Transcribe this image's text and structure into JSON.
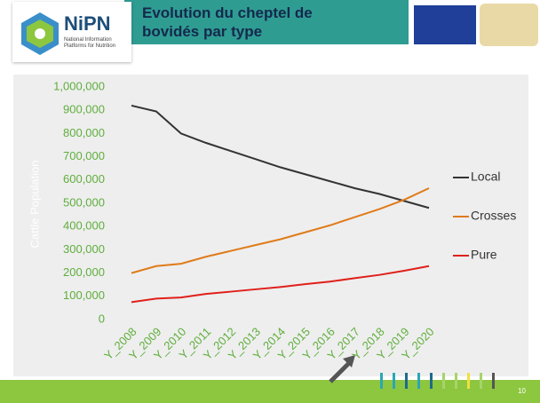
{
  "header": {
    "logo": "NiPN",
    "logo_subtitle": "National Information Platforms for Nutrition",
    "page_number": "10"
  },
  "chart_data": {
    "type": "line",
    "title": "Evolution du cheptel de bovidés par type",
    "y_label": "Cattle Population",
    "categories": [
      "Y_2008",
      "Y_2009",
      "Y_2010",
      "Y_2011",
      "Y_2012",
      "Y_2013",
      "Y_2014",
      "Y_2015",
      "Y_2016",
      "Y_2017",
      "Y_2018",
      "Y_2019",
      "Y_2020"
    ],
    "series": [
      {
        "name": "Local",
        "color": "#333333",
        "values": [
          920000,
          895000,
          800000,
          760000,
          725000,
          690000,
          655000,
          625000,
          595000,
          565000,
          540000,
          510000,
          480000
        ]
      },
      {
        "name": "Crosses",
        "color": "#e07b1a",
        "values": [
          200000,
          230000,
          240000,
          270000,
          295000,
          320000,
          345000,
          375000,
          405000,
          440000,
          475000,
          515000,
          565000
        ]
      },
      {
        "name": "Pure",
        "color": "#e0201b",
        "values": [
          75000,
          90000,
          95000,
          110000,
          120000,
          130000,
          140000,
          152000,
          163000,
          178000,
          192000,
          210000,
          230000
        ]
      }
    ],
    "ylim": [
      0,
      1000000
    ],
    "yticks": [
      0,
      {
        "value": 100000,
        "label": "100,000"
      },
      {
        "value": 200000,
        "label": "200,000"
      },
      {
        "value": 300000,
        "label": "300,000"
      },
      {
        "value": 400000,
        "label": "400,000"
      },
      {
        "value": 500000,
        "label": "500,000"
      },
      {
        "value": 600000,
        "label": "600,000"
      },
      {
        "value": 700000,
        "label": "700,000"
      },
      {
        "value": 800000,
        "label": "800,000"
      },
      {
        "value": 900000,
        "label": "900,000"
      },
      {
        "value": 1000000,
        "label": "1,000,000"
      }
    ],
    "legend": "right"
  }
}
